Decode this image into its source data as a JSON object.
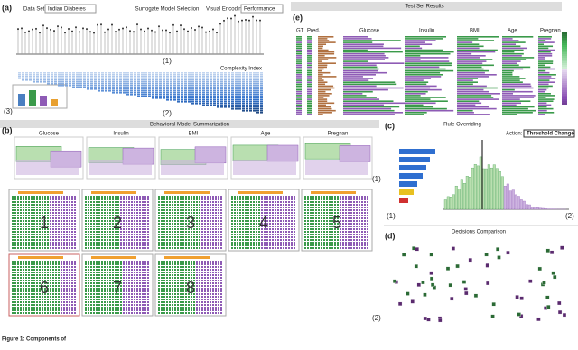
{
  "panels": {
    "a": {
      "label": "(a)",
      "data_set_label": "Data Set",
      "data_set": "Indian Diabetes",
      "title": "Surrogate Model Selection",
      "encoding_label": "Visual Encoding",
      "encoding": "Performance",
      "markers": [
        "(1)",
        "(2)",
        "(3)"
      ],
      "x_axis": "Complexity Index"
    },
    "b": {
      "label": "(b)",
      "title": "Behavioral Model Summarization",
      "features": [
        "Glucose",
        "Insulin",
        "BMI",
        "Age",
        "Pregnan"
      ],
      "markers": [
        "(1)",
        "(2)"
      ],
      "models": [
        "1",
        "2",
        "3",
        "4",
        "5",
        "6",
        "7",
        "8"
      ]
    },
    "c": {
      "label": "(c)",
      "title": "Rule Overriding",
      "action_label": "Action:",
      "action": "Threshold Change",
      "markers": [
        "(1)",
        "(2)"
      ]
    },
    "d": {
      "label": "(d)",
      "title": "Decisions Comparison"
    },
    "e": {
      "label": "(e)",
      "title": "Test Set Results",
      "columns": [
        "GT",
        "Pred.",
        "Glucose",
        "Insulin",
        "BMI",
        "Age",
        "Pregnan"
      ]
    }
  },
  "caption": "Figure 1: Components of"
}
